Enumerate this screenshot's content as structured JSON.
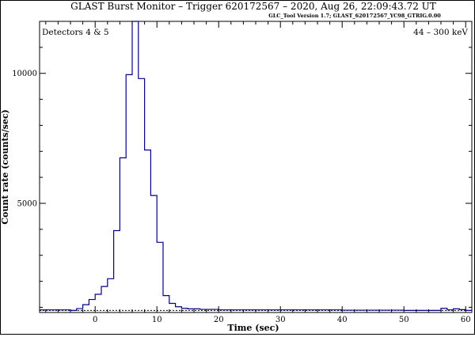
{
  "chart_data": {
    "type": "line",
    "step": true,
    "title": "GLAST Burst Monitor  –  Trigger 620172567  –  2020, Aug 26, 22:09:43.72 UT",
    "subtitle": "GLC_Tool Version 1.7; GLAST_620172567_YC98_GTRIG.0.00",
    "xlabel": "Time (sec)",
    "ylabel": "Count rate (counts/sec)",
    "xlim": [
      -9,
      61
    ],
    "ylim": [
      800,
      12000
    ],
    "x_ticks": [
      0,
      10,
      20,
      30,
      40,
      50,
      60
    ],
    "y_ticks": [
      5000,
      10000
    ],
    "annotation_left": "Detectors 4 & 5",
    "annotation_right": "44 – 300 keV",
    "background_level": 880,
    "colors": {
      "series": "#00008b",
      "axes": "#000000",
      "background_line": "#000000"
    },
    "series": [
      {
        "bin_edges": [
          -9,
          -4,
          -3,
          -2,
          -1,
          0,
          1,
          2,
          3,
          4,
          5,
          6,
          7,
          8,
          9,
          10,
          11,
          12,
          13,
          14,
          15,
          17,
          20,
          30,
          40,
          50,
          56,
          57,
          58,
          59,
          60,
          61
        ],
        "values": [
          900,
          880,
          950,
          1100,
          1300,
          1500,
          1800,
          2100,
          3950,
          6750,
          9950,
          12000,
          9800,
          7050,
          5300,
          3500,
          1450,
          1150,
          1020,
          960,
          940,
          920,
          900,
          900,
          890,
          880,
          960,
          900,
          940,
          910,
          880
        ]
      }
    ]
  }
}
